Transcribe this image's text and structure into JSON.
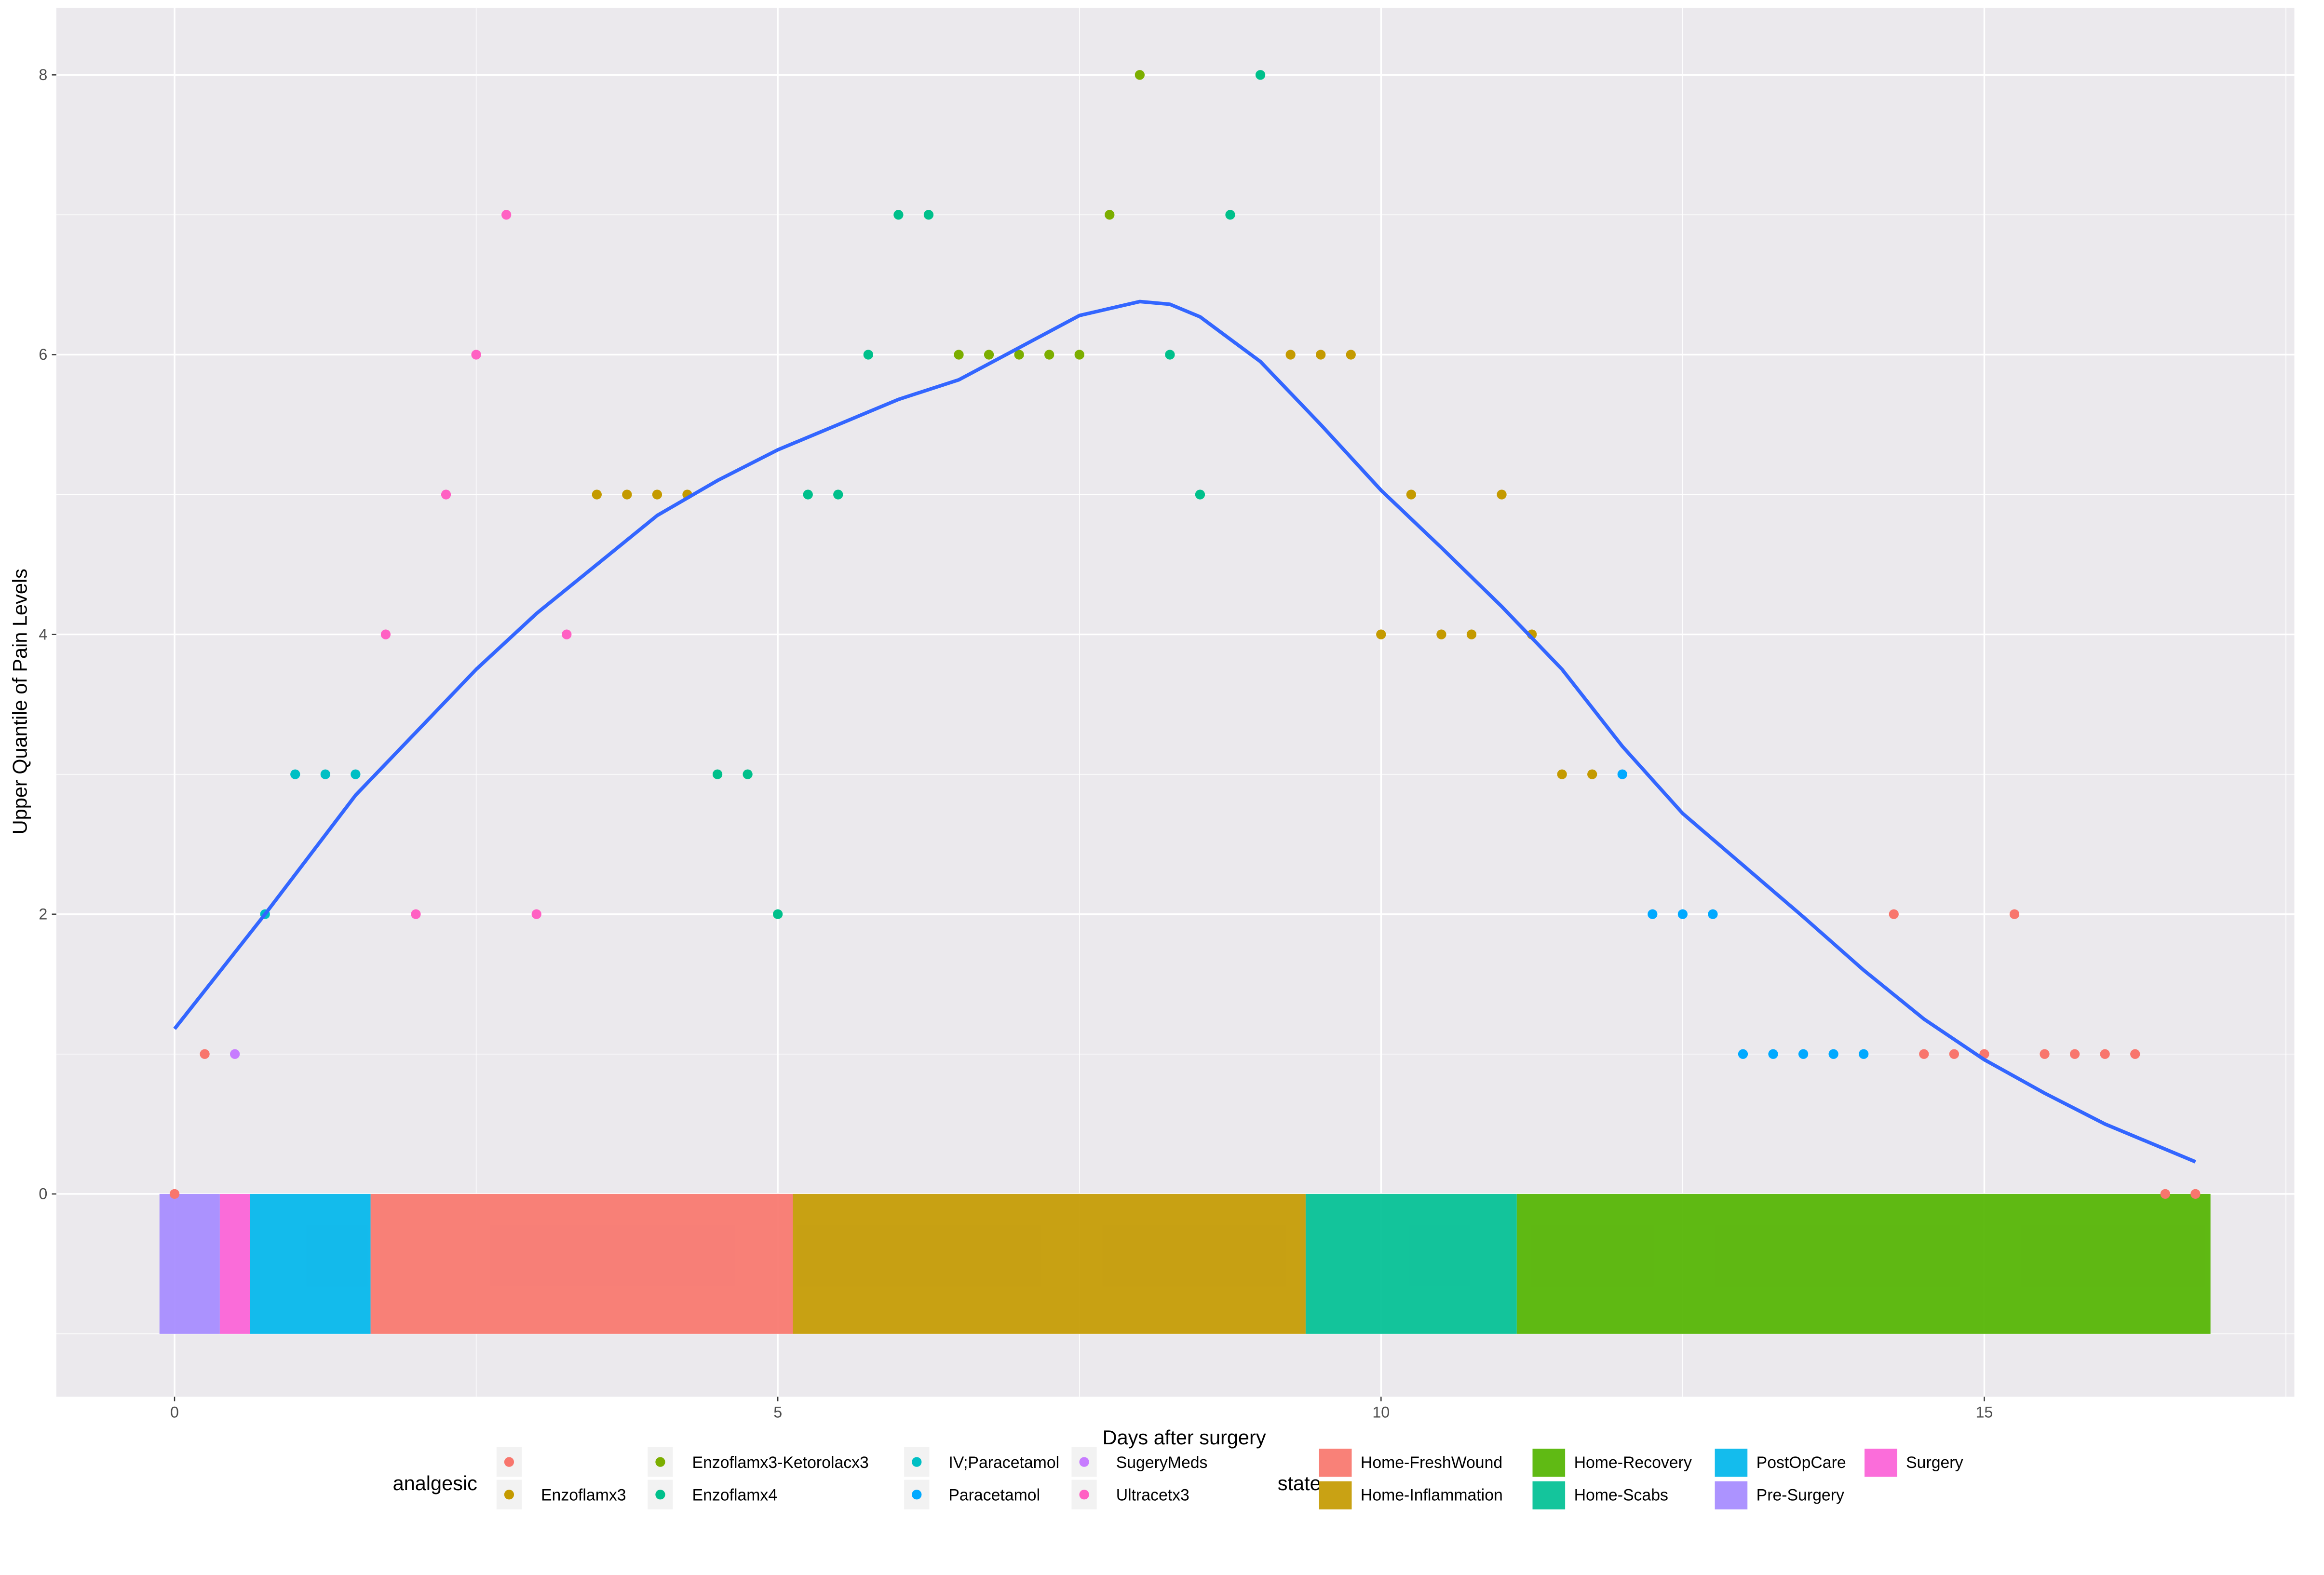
{
  "chart_data": {
    "type": "scatter",
    "xlabel": "Days after surgery",
    "ylabel": "Upper Quantile of Pain Levels",
    "xlim": [
      -0.98,
      17.57
    ],
    "ylim": [
      -1.45,
      8.48
    ],
    "x_ticks": [
      0,
      5,
      10,
      15
    ],
    "y_ticks": [
      0,
      2,
      4,
      6,
      8
    ],
    "grid": true,
    "legend_position": "bottom",
    "analgesic_legend": {
      "title": "analgesic",
      "entries": [
        {
          "label": "",
          "color": "#F8766D"
        },
        {
          "label": "Enzoflamx3",
          "color": "#C49A00"
        },
        {
          "label": "Enzoflamx3-Ketorolacx3",
          "color": "#7CAE00"
        },
        {
          "label": "Enzoflamx4",
          "color": "#00C08B"
        },
        {
          "label": "IV;Paracetamol",
          "color": "#00BFC4"
        },
        {
          "label": "Paracetamol",
          "color": "#00A9FF"
        },
        {
          "label": "SugeryMeds",
          "color": "#C77CFF"
        },
        {
          "label": "Ultracetx3",
          "color": "#FF61C3"
        }
      ]
    },
    "state_legend": {
      "title": "state",
      "entries": [
        {
          "label": "Home-FreshWound",
          "color": "#F8766D"
        },
        {
          "label": "Home-Inflammation",
          "color": "#C49A00"
        },
        {
          "label": "Home-Recovery",
          "color": "#53B400"
        },
        {
          "label": "Home-Scabs",
          "color": "#00C094"
        },
        {
          "label": "PostOpCare",
          "color": "#00B6EB"
        },
        {
          "label": "Pre-Surgery",
          "color": "#A58AFF"
        },
        {
          "label": "Surgery",
          "color": "#FB61D7"
        }
      ]
    },
    "state_bars": [
      {
        "state": "Pre-Surgery",
        "x0": -0.125,
        "x1": 0.375,
        "y0": -1,
        "y1": 0
      },
      {
        "state": "Surgery",
        "x0": 0.375,
        "x1": 0.625,
        "y0": -1,
        "y1": 0
      },
      {
        "state": "PostOpCare",
        "x0": 0.625,
        "x1": 1.625,
        "y0": -1,
        "y1": 0
      },
      {
        "state": "Home-FreshWound",
        "x0": 1.625,
        "x1": 5.125,
        "y0": -1,
        "y1": 0
      },
      {
        "state": "Home-Inflammation",
        "x0": 5.125,
        "x1": 9.375,
        "y0": -1,
        "y1": 0
      },
      {
        "state": "Home-Scabs",
        "x0": 9.375,
        "x1": 11.125,
        "y0": -1,
        "y1": 0
      },
      {
        "state": "Home-Recovery",
        "x0": 11.125,
        "x1": 16.875,
        "y0": -1,
        "y1": 0
      }
    ],
    "points": [
      [
        0,
        0,
        ""
      ],
      [
        0.25,
        1,
        ""
      ],
      [
        0.5,
        1,
        "SugeryMeds"
      ],
      [
        0.75,
        2,
        "IV;Paracetamol"
      ],
      [
        1.0,
        3,
        "IV;Paracetamol"
      ],
      [
        1.25,
        3,
        "IV;Paracetamol"
      ],
      [
        1.5,
        3,
        "IV;Paracetamol"
      ],
      [
        1.75,
        4,
        "Ultracetx3"
      ],
      [
        2.0,
        2,
        "Ultracetx3"
      ],
      [
        2.25,
        5,
        "Ultracetx3"
      ],
      [
        2.5,
        6,
        "Ultracetx3"
      ],
      [
        2.75,
        7,
        "Ultracetx3"
      ],
      [
        3.0,
        2,
        "Ultracetx3"
      ],
      [
        3.25,
        4,
        "Ultracetx3"
      ],
      [
        3.5,
        5,
        "Enzoflamx3"
      ],
      [
        3.75,
        5,
        "Enzoflamx3"
      ],
      [
        4.0,
        5,
        "Enzoflamx3"
      ],
      [
        4.25,
        5,
        "Enzoflamx3"
      ],
      [
        4.5,
        3,
        "Enzoflamx4"
      ],
      [
        4.75,
        3,
        "Enzoflamx4"
      ],
      [
        5.0,
        2,
        "Enzoflamx4"
      ],
      [
        5.25,
        5,
        "Enzoflamx4"
      ],
      [
        5.5,
        5,
        "Enzoflamx4"
      ],
      [
        5.75,
        6,
        "Enzoflamx4"
      ],
      [
        6.0,
        7,
        "Enzoflamx4"
      ],
      [
        6.25,
        7,
        "Enzoflamx4"
      ],
      [
        6.5,
        6,
        "Enzoflamx3-Ketorolacx3"
      ],
      [
        6.75,
        6,
        "Enzoflamx3-Ketorolacx3"
      ],
      [
        7.0,
        6,
        "Enzoflamx3-Ketorolacx3"
      ],
      [
        7.25,
        6,
        "Enzoflamx3-Ketorolacx3"
      ],
      [
        7.5,
        6,
        "Enzoflamx3-Ketorolacx3"
      ],
      [
        7.75,
        7,
        "Enzoflamx3-Ketorolacx3"
      ],
      [
        8.0,
        8,
        "Enzoflamx3-Ketorolacx3"
      ],
      [
        8.25,
        6,
        "Enzoflamx4"
      ],
      [
        8.5,
        5,
        "Enzoflamx4"
      ],
      [
        8.75,
        7,
        "Enzoflamx4"
      ],
      [
        9.0,
        8,
        "Enzoflamx4"
      ],
      [
        9.25,
        6,
        "Enzoflamx3"
      ],
      [
        9.5,
        6,
        "Enzoflamx3"
      ],
      [
        9.75,
        6,
        "Enzoflamx3"
      ],
      [
        10.0,
        4,
        "Enzoflamx3"
      ],
      [
        10.25,
        5,
        "Enzoflamx3"
      ],
      [
        10.5,
        4,
        "Enzoflamx3"
      ],
      [
        10.75,
        4,
        "Enzoflamx3"
      ],
      [
        11.0,
        5,
        "Enzoflamx3"
      ],
      [
        11.25,
        4,
        "Enzoflamx3"
      ],
      [
        11.5,
        3,
        "Enzoflamx3"
      ],
      [
        11.75,
        3,
        "Enzoflamx3"
      ],
      [
        12.0,
        3,
        "Paracetamol"
      ],
      [
        12.25,
        2,
        "Paracetamol"
      ],
      [
        12.5,
        2,
        "Paracetamol"
      ],
      [
        12.75,
        2,
        "Paracetamol"
      ],
      [
        13.0,
        1,
        "Paracetamol"
      ],
      [
        13.25,
        1,
        "Paracetamol"
      ],
      [
        13.5,
        1,
        "Paracetamol"
      ],
      [
        13.75,
        1,
        "Paracetamol"
      ],
      [
        14.0,
        1,
        "Paracetamol"
      ],
      [
        14.25,
        2,
        ""
      ],
      [
        14.5,
        1,
        ""
      ],
      [
        14.75,
        1,
        ""
      ],
      [
        15.0,
        1,
        ""
      ],
      [
        15.25,
        2,
        ""
      ],
      [
        15.5,
        1,
        ""
      ],
      [
        15.75,
        1,
        ""
      ],
      [
        16.0,
        1,
        ""
      ],
      [
        16.25,
        1,
        ""
      ],
      [
        16.5,
        0,
        ""
      ],
      [
        16.75,
        0,
        ""
      ]
    ],
    "smooth_line": {
      "color": "#3366FF",
      "x": [
        0,
        0.75,
        1.5,
        2,
        2.5,
        3,
        3.5,
        4,
        4.5,
        5,
        5.5,
        6,
        6.5,
        7,
        7.5,
        8,
        8.25,
        8.5,
        9,
        9.5,
        10,
        10.5,
        11,
        11.5,
        12,
        12.5,
        13,
        13.5,
        14,
        14.5,
        15,
        15.5,
        16,
        16.75
      ],
      "y": [
        1.18,
        2.0,
        2.85,
        3.3,
        3.75,
        4.15,
        4.5,
        4.85,
        5.1,
        5.32,
        5.5,
        5.68,
        5.82,
        6.05,
        6.28,
        6.38,
        6.36,
        6.27,
        5.95,
        5.5,
        5.03,
        4.62,
        4.2,
        3.75,
        3.2,
        2.72,
        2.35,
        1.98,
        1.6,
        1.25,
        0.96,
        0.72,
        0.5,
        0.23
      ]
    }
  }
}
